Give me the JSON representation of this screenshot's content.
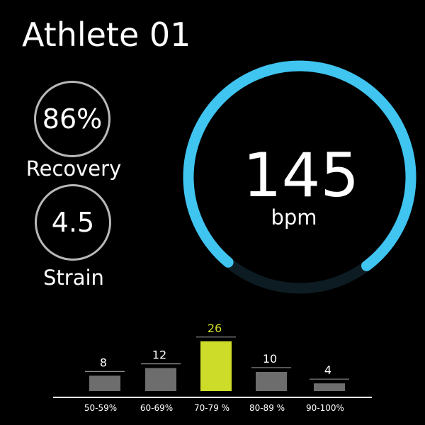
{
  "athlete": {
    "name": "Athlete 01"
  },
  "recovery": {
    "value": "86%",
    "label": "Recovery"
  },
  "strain": {
    "value": "4.5",
    "label": "Strain"
  },
  "heart_rate": {
    "value": "145",
    "unit": "bpm"
  },
  "zones": [
    {
      "label": "50-59%",
      "count": 8,
      "active": false
    },
    {
      "label": "60-69%",
      "count": 12,
      "active": false
    },
    {
      "label": "70-79 %",
      "count": 26,
      "active": true
    },
    {
      "label": "80-89 %",
      "count": 10,
      "active": false
    },
    {
      "label": "90-100%",
      "count": 4,
      "active": false
    }
  ],
  "colors": {
    "background": "#000000",
    "ring_accent": "#40c4f0",
    "ring_track": "#0c1c22",
    "stat_ring": "#b8b8b8",
    "active_zone": "#cddc29",
    "zone_bar": "#6d6d6d"
  }
}
